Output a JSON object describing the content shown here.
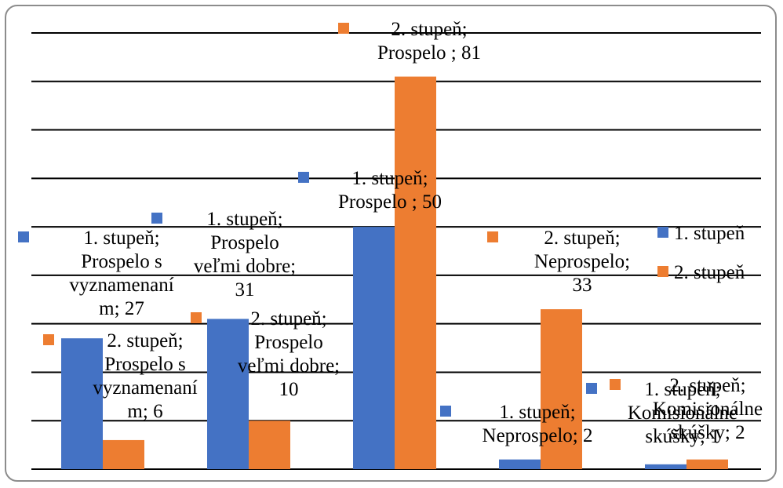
{
  "chart_data": {
    "type": "bar",
    "categories": [
      "Prospelo s vyznamenaním",
      "Prospelo veľmi dobre",
      "Prospelo",
      "Neprospelo",
      "Komisionálne skúšky"
    ],
    "series": [
      {
        "name": "1. stupeň",
        "values": [
          27,
          31,
          50,
          2,
          1
        ],
        "color": "#4472C4"
      },
      {
        "name": "2. stupeň",
        "values": [
          6,
          10,
          81,
          33,
          2
        ],
        "color": "#ED7D31"
      }
    ],
    "data_labels": [
      [
        [
          "1. stupeň;",
          "Prospelo s",
          "vyznamenaní",
          "m; 27"
        ],
        [
          "1. stupeň;",
          "Prospelo",
          "veľmi dobre;",
          "31"
        ],
        [
          "1. stupeň;",
          "Prospelo ; 50"
        ],
        [
          "1. stupeň;",
          "Neprospelo; 2"
        ],
        [
          "1. stupeň;",
          "Komisionálne",
          "skúšky; 1"
        ]
      ],
      [
        [
          "2. stupeň;",
          "Prospelo s",
          "vyznamenaní",
          "m; 6"
        ],
        [
          "2. stupeň;",
          "Prospelo",
          "veľmi dobre;",
          "10"
        ],
        [
          "2. stupeň;",
          "Prospelo ; 81"
        ],
        [
          "2. stupeň;",
          "Neprospelo;",
          "33"
        ],
        [
          "2. stupeň;",
          "Komisionálne",
          "skúšky; 2"
        ]
      ]
    ],
    "ylim": [
      0,
      90
    ],
    "grid": true,
    "legend_position": "right"
  }
}
